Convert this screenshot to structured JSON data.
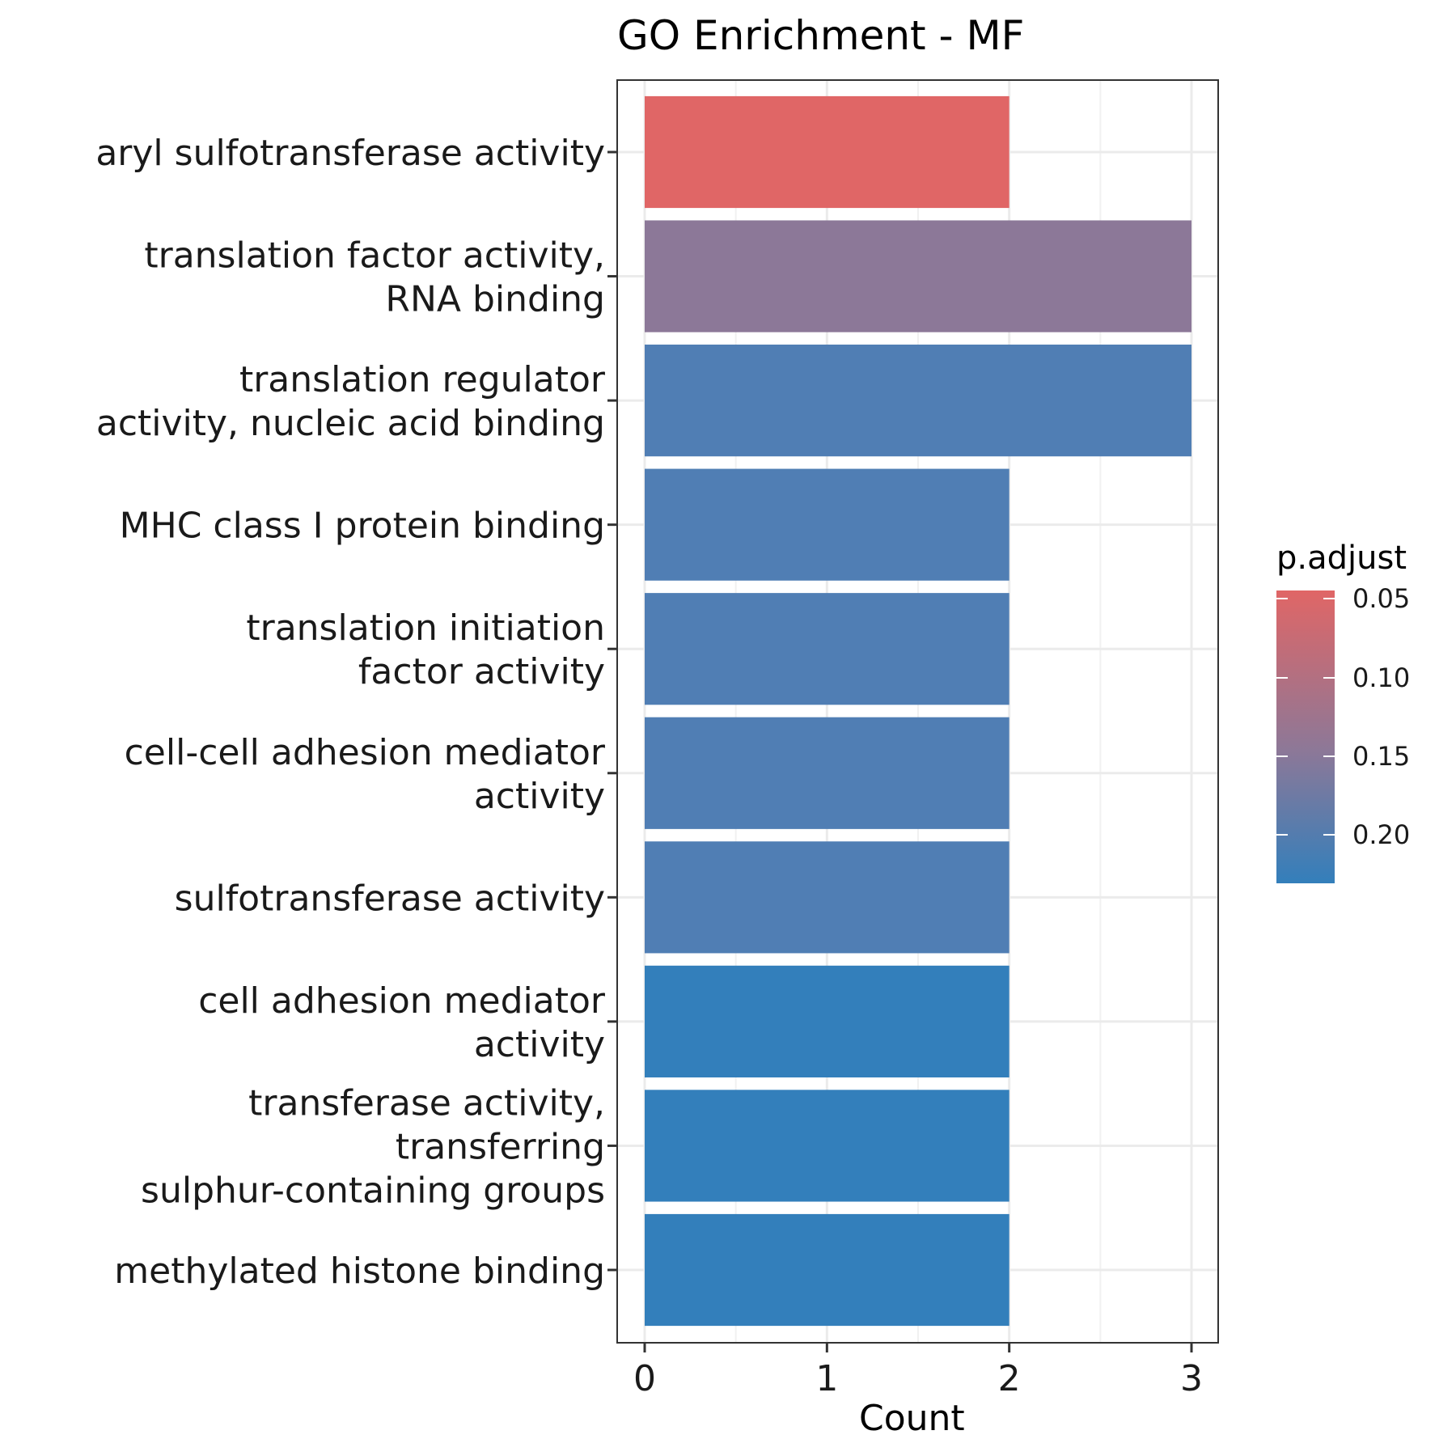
{
  "chart_data": {
    "type": "bar",
    "orientation": "horizontal",
    "title": "GO Enrichment - MF",
    "xlabel": "Count",
    "ylabel": "",
    "xlim": [
      0,
      3
    ],
    "x_ticks": [
      "0",
      "1",
      "2",
      "3"
    ],
    "grid": true,
    "categories": [
      [
        "aryl sulfotransferase activity"
      ],
      [
        "translation factor activity,",
        "RNA binding"
      ],
      [
        "translation regulator",
        "activity, nucleic acid binding"
      ],
      [
        "MHC class I protein binding"
      ],
      [
        "translation initiation",
        "factor activity"
      ],
      [
        "cell-cell adhesion mediator",
        "activity"
      ],
      [
        "sulfotransferase activity"
      ],
      [
        "cell adhesion mediator",
        "activity"
      ],
      [
        "transferase activity,",
        "transferring",
        "sulphur-containing groups"
      ],
      [
        "methylated histone binding"
      ]
    ],
    "values": [
      2,
      3,
      3,
      2,
      2,
      2,
      2,
      2,
      2,
      2
    ],
    "colors": [
      "#e06666",
      "#8c7898",
      "#507eb4",
      "#507eb4",
      "#507eb4",
      "#507eb4",
      "#507eb4",
      "#337fbb",
      "#337fbb",
      "#337fbb"
    ],
    "legend": {
      "title": "p.adjust",
      "position": "right",
      "ticks": [
        "0.05",
        "0.10",
        "0.15",
        "0.20"
      ],
      "color_top": "#e06666",
      "color_mid": "#8c7898",
      "color_bottom": "#337fbb"
    }
  }
}
